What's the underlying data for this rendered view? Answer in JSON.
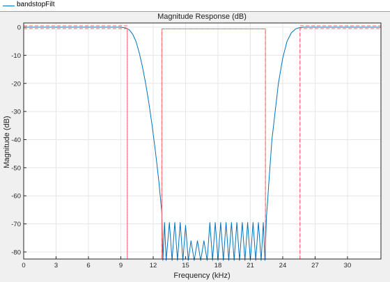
{
  "legend": {
    "entries": [
      {
        "label": "bandstopFilt",
        "color": "#0072bd"
      }
    ]
  },
  "chart_data": {
    "type": "line",
    "title": "Magnitude Response (dB)",
    "xlabel": "Frequency (kHz)",
    "ylabel": "Magnitude (dB)",
    "xlim": [
      0,
      33.1
    ],
    "ylim": [
      -82.5,
      1.5
    ],
    "xticks": [
      0,
      3,
      6,
      9,
      12,
      15,
      18,
      21,
      24,
      27,
      30
    ],
    "yticks": [
      0,
      -10,
      -20,
      -30,
      -40,
      -50,
      -60,
      -70,
      -80
    ],
    "grid": true,
    "series": [
      {
        "name": "bandstopFilt",
        "color": "#0072bd",
        "style": "solid",
        "x": [
          0,
          9.0,
          9.5,
          9.8,
          10.1,
          10.4,
          10.7,
          11.0,
          11.3,
          11.6,
          11.9,
          12.2,
          12.5,
          12.8,
          12.9,
          13.05,
          13.2,
          13.5,
          13.75,
          14.0,
          14.25,
          14.5,
          14.75,
          15.0,
          15.25,
          15.5,
          15.8,
          16.1,
          16.4,
          16.7,
          17.0,
          17.25,
          17.5,
          17.75,
          18.0,
          18.25,
          18.5,
          18.75,
          19.0,
          19.25,
          19.5,
          19.75,
          20.0,
          20.25,
          20.5,
          20.75,
          21.0,
          21.25,
          21.5,
          21.75,
          22.0,
          22.2,
          22.35,
          22.5,
          22.6,
          22.7,
          22.85,
          23.0,
          23.3,
          23.6,
          24.0,
          24.4,
          24.8,
          25.2,
          25.6,
          26.0,
          33.1
        ],
        "y": [
          0,
          0,
          -0.3,
          -1,
          -2.5,
          -5,
          -9,
          -14,
          -20,
          -27,
          -35,
          -44,
          -54,
          -66,
          -83,
          -69.5,
          -83,
          -69.5,
          -83,
          -69.5,
          -83,
          -69.5,
          -83,
          -70.5,
          -83,
          -76,
          -83,
          -76,
          -83,
          -76,
          -83,
          -69.5,
          -83,
          -69.5,
          -83,
          -69.5,
          -83,
          -69.5,
          -83,
          -69.5,
          -83,
          -69.5,
          -83,
          -69.5,
          -83,
          -69.5,
          -83,
          -69.5,
          -83,
          -69.5,
          -83,
          -69.5,
          -83,
          -67,
          -62,
          -56,
          -48,
          -40,
          -30,
          -20,
          -11,
          -5,
          -2,
          -0.6,
          -0.1,
          0,
          0
        ]
      },
      {
        "name": "",
        "color": "#ff6060",
        "style": "dashed",
        "x": [
          0,
          9.6,
          9.6,
          12.8,
          12.8,
          22.4,
          22.4,
          25.6,
          25.6,
          33.1
        ],
        "y": [
          0.5,
          0.5,
          -82.5,
          -82.5,
          -0.6,
          -0.6,
          -82.5,
          -82.5,
          0.5,
          0.5
        ]
      },
      {
        "name": "",
        "color": "#ff6060",
        "style": "dashed",
        "x": [
          0,
          9.6,
          9.6,
          12.8,
          12.8,
          22.4,
          22.4,
          25.6,
          25.6,
          33.1
        ],
        "y": [
          -0.5,
          -0.5,
          -82.5,
          -82.5,
          -82.5,
          -82.5,
          -82.5,
          -82.5,
          -0.5,
          -0.5
        ]
      },
      {
        "name": "",
        "color": "#ff6060",
        "style": "dashed",
        "x": [
          12.8,
          12.8,
          22.4,
          22.4
        ],
        "y": [
          -82.5,
          -0.6,
          -0.6,
          -82.5
        ]
      }
    ]
  }
}
